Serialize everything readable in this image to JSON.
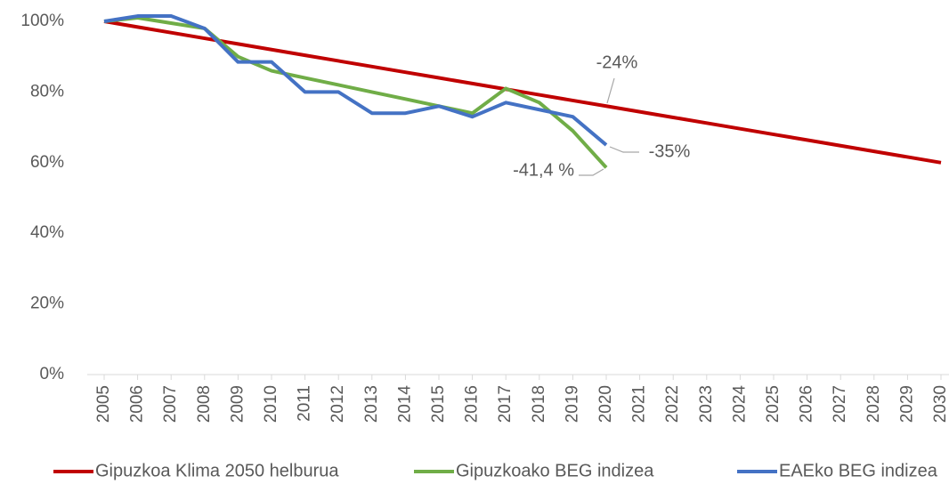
{
  "chart_data": {
    "type": "line",
    "categories": [
      "2005",
      "2006",
      "2007",
      "2008",
      "2009",
      "2010",
      "2011",
      "2012",
      "2013",
      "2014",
      "2015",
      "2016",
      "2017",
      "2018",
      "2019",
      "2020",
      "2021",
      "2022",
      "2023",
      "2024",
      "2025",
      "2026",
      "2027",
      "2028",
      "2029",
      "2030"
    ],
    "series": [
      {
        "name": "Gipuzkoa Klima 2050 helburua",
        "color": "#c00000",
        "values": [
          100,
          98.4,
          96.8,
          95.2,
          93.6,
          92,
          90.4,
          88.8,
          87.2,
          85.6,
          84,
          82.4,
          80.8,
          79.2,
          77.6,
          76,
          74.4,
          72.8,
          71.2,
          69.6,
          68,
          66.4,
          64.8,
          63.2,
          61.6,
          60
        ]
      },
      {
        "name": "Gipuzkoako BEG indizea",
        "color": "#70ad47",
        "values": [
          100,
          101,
          99.5,
          98,
          90,
          86,
          84,
          82,
          80,
          78,
          76,
          74,
          81,
          77,
          69,
          58.6,
          null,
          null,
          null,
          null,
          null,
          null,
          null,
          null,
          null,
          null
        ]
      },
      {
        "name": "EAEko BEG indizea",
        "color": "#4472c4",
        "values": [
          100,
          101.5,
          101.5,
          98,
          88.5,
          88.5,
          80,
          80,
          74,
          74,
          76,
          73,
          77,
          75,
          73,
          65,
          null,
          null,
          null,
          null,
          null,
          null,
          null,
          null,
          null,
          null
        ]
      }
    ],
    "annotations": [
      "-24%",
      "-35%",
      "-41,4 %"
    ],
    "ylim": [
      0,
      100
    ],
    "yticks": [
      {
        "value": 0,
        "label": "0%"
      },
      {
        "value": 20,
        "label": "20%"
      },
      {
        "value": 40,
        "label": "40%"
      },
      {
        "value": 60,
        "label": "60%"
      },
      {
        "value": 80,
        "label": "80%"
      },
      {
        "value": 100,
        "label": "100%"
      }
    ],
    "grid": false,
    "legend": "bottom"
  }
}
